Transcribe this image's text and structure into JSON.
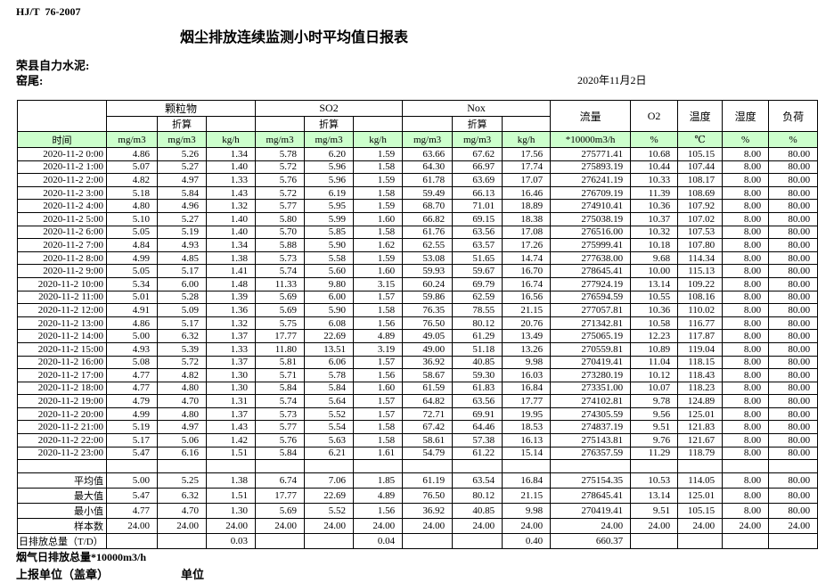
{
  "header": {
    "standard_code": "HJ/T  76-2007",
    "title": "烟尘排放连续监测小时平均值日报表",
    "company": "荣县自力水泥:",
    "location": "窑尾:",
    "date": "2020年11月2日"
  },
  "table": {
    "groups": {
      "pm": "颗粒物",
      "so2": "SO2",
      "nox": "Nox",
      "flow": "流量",
      "o2": "O2",
      "temperature": "温度",
      "humidity": "湿度",
      "load": "负荷"
    },
    "converted_label": "折算",
    "units_row": [
      "时间",
      "mg/m3",
      "mg/m3",
      "kg/h",
      "mg/m3",
      "mg/m3",
      "kg/h",
      "mg/m3",
      "mg/m3",
      "kg/h",
      "*10000m3/h",
      "%",
      "℃",
      "%",
      "%"
    ],
    "rows": [
      [
        "2020-11-2 0:00",
        "4.86",
        "5.26",
        "1.34",
        "5.78",
        "6.20",
        "1.59",
        "63.66",
        "67.62",
        "17.56",
        "275771.41",
        "10.68",
        "105.15",
        "8.00",
        "80.00"
      ],
      [
        "2020-11-2 1:00",
        "5.07",
        "5.27",
        "1.40",
        "5.72",
        "5.96",
        "1.58",
        "64.30",
        "66.97",
        "17.74",
        "275893.19",
        "10.44",
        "107.44",
        "8.00",
        "80.00"
      ],
      [
        "2020-11-2 2:00",
        "4.82",
        "4.97",
        "1.33",
        "5.76",
        "5.96",
        "1.59",
        "61.78",
        "63.69",
        "17.07",
        "276241.19",
        "10.33",
        "108.17",
        "8.00",
        "80.00"
      ],
      [
        "2020-11-2 3:00",
        "5.18",
        "5.84",
        "1.43",
        "5.72",
        "6.19",
        "1.58",
        "59.49",
        "66.13",
        "16.46",
        "276709.19",
        "11.39",
        "108.69",
        "8.00",
        "80.00"
      ],
      [
        "2020-11-2 4:00",
        "4.80",
        "4.96",
        "1.32",
        "5.77",
        "5.95",
        "1.59",
        "68.70",
        "71.01",
        "18.89",
        "274910.41",
        "10.36",
        "107.92",
        "8.00",
        "80.00"
      ],
      [
        "2020-11-2 5:00",
        "5.10",
        "5.27",
        "1.40",
        "5.80",
        "5.99",
        "1.60",
        "66.82",
        "69.15",
        "18.38",
        "275038.19",
        "10.37",
        "107.02",
        "8.00",
        "80.00"
      ],
      [
        "2020-11-2 6:00",
        "5.05",
        "5.19",
        "1.40",
        "5.70",
        "5.85",
        "1.58",
        "61.76",
        "63.56",
        "17.08",
        "276516.00",
        "10.32",
        "107.53",
        "8.00",
        "80.00"
      ],
      [
        "2020-11-2 7:00",
        "4.84",
        "4.93",
        "1.34",
        "5.88",
        "5.90",
        "1.62",
        "62.55",
        "63.57",
        "17.26",
        "275999.41",
        "10.18",
        "107.80",
        "8.00",
        "80.00"
      ],
      [
        "2020-11-2 8:00",
        "4.99",
        "4.85",
        "1.38",
        "5.73",
        "5.58",
        "1.59",
        "53.08",
        "51.65",
        "14.74",
        "277638.00",
        "9.68",
        "114.34",
        "8.00",
        "80.00"
      ],
      [
        "2020-11-2 9:00",
        "5.05",
        "5.17",
        "1.41",
        "5.74",
        "5.60",
        "1.60",
        "59.93",
        "59.67",
        "16.70",
        "278645.41",
        "10.00",
        "115.13",
        "8.00",
        "80.00"
      ],
      [
        "2020-11-2 10:00",
        "5.34",
        "6.00",
        "1.48",
        "11.33",
        "9.80",
        "3.15",
        "60.24",
        "69.79",
        "16.74",
        "277924.19",
        "13.14",
        "109.22",
        "8.00",
        "80.00"
      ],
      [
        "2020-11-2 11:00",
        "5.01",
        "5.28",
        "1.39",
        "5.69",
        "6.00",
        "1.57",
        "59.86",
        "62.59",
        "16.56",
        "276594.59",
        "10.55",
        "108.16",
        "8.00",
        "80.00"
      ],
      [
        "2020-11-2 12:00",
        "4.91",
        "5.09",
        "1.36",
        "5.69",
        "5.90",
        "1.58",
        "76.35",
        "78.55",
        "21.15",
        "277057.81",
        "10.36",
        "110.02",
        "8.00",
        "80.00"
      ],
      [
        "2020-11-2 13:00",
        "4.86",
        "5.17",
        "1.32",
        "5.75",
        "6.08",
        "1.56",
        "76.50",
        "80.12",
        "20.76",
        "271342.81",
        "10.58",
        "116.77",
        "8.00",
        "80.00"
      ],
      [
        "2020-11-2 14:00",
        "5.00",
        "6.32",
        "1.37",
        "17.77",
        "22.69",
        "4.89",
        "49.05",
        "61.29",
        "13.49",
        "275065.19",
        "12.23",
        "117.87",
        "8.00",
        "80.00"
      ],
      [
        "2020-11-2 15:00",
        "4.93",
        "5.39",
        "1.33",
        "11.80",
        "13.51",
        "3.19",
        "49.00",
        "51.18",
        "13.26",
        "270559.81",
        "10.89",
        "119.04",
        "8.00",
        "80.00"
      ],
      [
        "2020-11-2 16:00",
        "5.08",
        "5.72",
        "1.37",
        "5.81",
        "6.06",
        "1.57",
        "36.92",
        "40.85",
        "9.98",
        "270419.41",
        "11.04",
        "118.15",
        "8.00",
        "80.00"
      ],
      [
        "2020-11-2 17:00",
        "4.77",
        "4.82",
        "1.30",
        "5.71",
        "5.78",
        "1.56",
        "58.67",
        "59.30",
        "16.03",
        "273280.19",
        "10.12",
        "118.43",
        "8.00",
        "80.00"
      ],
      [
        "2020-11-2 18:00",
        "4.77",
        "4.80",
        "1.30",
        "5.84",
        "5.84",
        "1.60",
        "61.59",
        "61.83",
        "16.84",
        "273351.00",
        "10.07",
        "118.23",
        "8.00",
        "80.00"
      ],
      [
        "2020-11-2 19:00",
        "4.79",
        "4.70",
        "1.31",
        "5.74",
        "5.64",
        "1.57",
        "64.82",
        "63.56",
        "17.77",
        "274102.81",
        "9.78",
        "124.89",
        "8.00",
        "80.00"
      ],
      [
        "2020-11-2 20:00",
        "4.99",
        "4.80",
        "1.37",
        "5.73",
        "5.52",
        "1.57",
        "72.71",
        "69.91",
        "19.95",
        "274305.59",
        "9.56",
        "125.01",
        "8.00",
        "80.00"
      ],
      [
        "2020-11-2 21:00",
        "5.19",
        "4.97",
        "1.43",
        "5.77",
        "5.54",
        "1.58",
        "67.42",
        "64.46",
        "18.53",
        "274837.19",
        "9.51",
        "121.83",
        "8.00",
        "80.00"
      ],
      [
        "2020-11-2 22:00",
        "5.17",
        "5.06",
        "1.42",
        "5.76",
        "5.63",
        "1.58",
        "58.61",
        "57.38",
        "16.13",
        "275143.81",
        "9.76",
        "121.67",
        "8.00",
        "80.00"
      ],
      [
        "2020-11-2 23:00",
        "5.47",
        "6.16",
        "1.51",
        "5.84",
        "6.21",
        "1.61",
        "54.79",
        "61.22",
        "15.14",
        "276357.59",
        "11.29",
        "118.79",
        "8.00",
        "80.00"
      ]
    ],
    "summary_rows": [
      [
        "",
        "",
        "",
        "",
        "",
        "",
        "",
        "",
        "",
        "",
        "",
        "",
        "",
        "",
        ""
      ],
      [
        "平均值",
        "5.00",
        "5.25",
        "1.38",
        "6.74",
        "7.06",
        "1.85",
        "61.19",
        "63.54",
        "16.84",
        "275154.35",
        "10.53",
        "114.05",
        "8.00",
        "80.00"
      ],
      [
        "最大值",
        "5.47",
        "6.32",
        "1.51",
        "17.77",
        "22.69",
        "4.89",
        "76.50",
        "80.12",
        "21.15",
        "278645.41",
        "13.14",
        "125.01",
        "8.00",
        "80.00"
      ],
      [
        "最小值",
        "4.77",
        "4.70",
        "1.30",
        "5.69",
        "5.52",
        "1.56",
        "36.92",
        "40.85",
        "9.98",
        "270419.41",
        "9.51",
        "105.15",
        "8.00",
        "80.00"
      ],
      [
        "样本数",
        "24.00",
        "24.00",
        "24.00",
        "24.00",
        "24.00",
        "24.00",
        "24.00",
        "24.00",
        "24.00",
        "24.00",
        "24.00",
        "24.00",
        "24.00",
        "24.00"
      ],
      [
        "日排放总量（T/D）",
        "",
        "",
        "0.03",
        "",
        "",
        "0.04",
        "",
        "",
        "0.40",
        "660.37",
        "",
        "",
        "",
        ""
      ]
    ]
  },
  "footer": {
    "flue_gas_total": "烟气日排放总量*10000m3/h",
    "report_unit_stamp": "上报单位（盖章）",
    "unit": "单位"
  },
  "colors": {
    "header_green": "#ccffcc",
    "border": "#000000"
  }
}
